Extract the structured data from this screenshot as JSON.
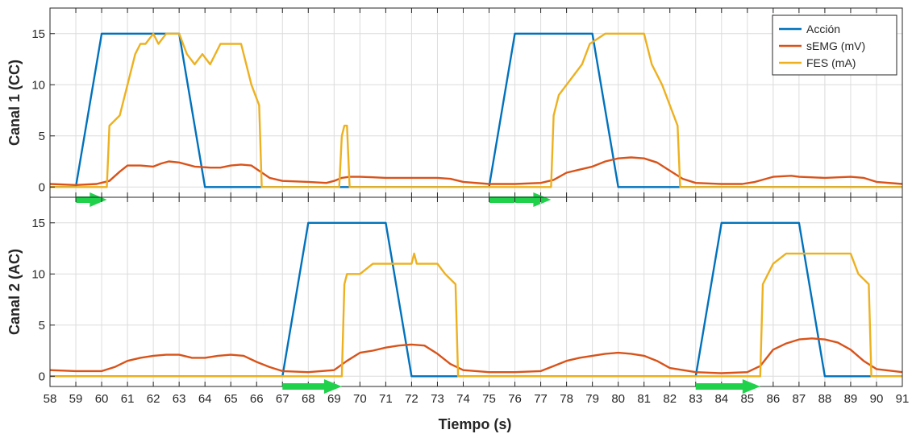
{
  "chart_data": {
    "type": "line",
    "xlabel": "Tiempo (s)",
    "xlim": [
      58,
      91
    ],
    "xticks": [
      58,
      59,
      60,
      61,
      62,
      63,
      64,
      65,
      66,
      67,
      68,
      69,
      70,
      71,
      72,
      73,
      74,
      75,
      76,
      77,
      78,
      79,
      80,
      81,
      82,
      83,
      84,
      85,
      86,
      87,
      88,
      89,
      90,
      91
    ],
    "grid": true,
    "colors": {
      "accion": "#0072BD",
      "semg": "#D95319",
      "fes": "#EDB120",
      "arrow": "#1FD14B"
    },
    "legend": {
      "placement": "top-right",
      "entries": [
        "Acción",
        "sEMG (mV)",
        "FES (mA)"
      ]
    },
    "panels": [
      {
        "ylabel": "Canal 1 (CC)",
        "ylim": [
          -1,
          17.5
        ],
        "yticks": [
          0,
          5,
          10,
          15
        ],
        "arrows": [
          [
            59,
            60.2
          ],
          [
            75,
            77.4
          ]
        ],
        "series": [
          {
            "name": "Acción",
            "x": [
              58,
              59,
              60,
              63,
              64,
              75,
              76,
              79,
              80,
              91
            ],
            "y": [
              0,
              0,
              15,
              15,
              0,
              0,
              15,
              15,
              0,
              0
            ]
          },
          {
            "name": "sEMG (mV)",
            "x": [
              58,
              59,
              59.8,
              60.3,
              60.7,
              61,
              61.5,
              62,
              62.3,
              62.6,
              63,
              63.6,
              64.2,
              64.6,
              65,
              65.4,
              65.8,
              66.5,
              67,
              68,
              68.7,
              69,
              69.3,
              69.6,
              70,
              70.5,
              71,
              72,
              73,
              73.5,
              74,
              75,
              76,
              77,
              77.5,
              78,
              78.5,
              79,
              79.5,
              80,
              80.5,
              81,
              81.5,
              82,
              82.5,
              83,
              84,
              84.8,
              85.3,
              86,
              86.7,
              87,
              88,
              89,
              89.5,
              90,
              91
            ],
            "y": [
              0.3,
              0.2,
              0.3,
              0.6,
              1.5,
              2.1,
              2.1,
              2.0,
              2.3,
              2.5,
              2.4,
              2.0,
              1.9,
              1.9,
              2.1,
              2.2,
              2.1,
              0.9,
              0.6,
              0.5,
              0.4,
              0.6,
              0.9,
              1.0,
              1.0,
              0.95,
              0.9,
              0.9,
              0.9,
              0.8,
              0.5,
              0.3,
              0.3,
              0.4,
              0.7,
              1.4,
              1.7,
              2.0,
              2.5,
              2.8,
              2.9,
              2.8,
              2.4,
              1.6,
              0.8,
              0.4,
              0.3,
              0.3,
              0.5,
              1.0,
              1.1,
              1.0,
              0.9,
              1.0,
              0.9,
              0.5,
              0.3
            ]
          },
          {
            "name": "FES (mA)",
            "x": [
              58,
              60.2,
              60.3,
              60.7,
              61,
              61.3,
              61.5,
              61.7,
              62,
              62.2,
              62.5,
              62.8,
              63,
              63.3,
              63.6,
              63.9,
              64.2,
              64.6,
              65,
              65.4,
              65.8,
              66.1,
              66.2,
              69.2,
              69.3,
              69.4,
              69.5,
              69.6,
              77.4,
              77.5,
              77.7,
              78,
              78.3,
              78.6,
              78.9,
              79.5,
              80,
              80.5,
              81,
              81.3,
              81.7,
              82,
              82.3,
              82.4,
              91
            ],
            "y": [
              0,
              0,
              6,
              7,
              10,
              13,
              14,
              14,
              15,
              14,
              15,
              15,
              15,
              13,
              12,
              13,
              12,
              14,
              14,
              14,
              10,
              8,
              0,
              0,
              5,
              6,
              6,
              0,
              0,
              7,
              9,
              10,
              11,
              12,
              14,
              15,
              15,
              15,
              15,
              12,
              10,
              8,
              6,
              0,
              0
            ]
          }
        ]
      },
      {
        "ylabel": "Canal 2 (AC)",
        "ylim": [
          -1,
          17.5
        ],
        "yticks": [
          0,
          5,
          10,
          15
        ],
        "arrows": [
          [
            67,
            69.3
          ],
          [
            83,
            85.5
          ]
        ],
        "series": [
          {
            "name": "Acción",
            "x": [
              58,
              67,
              68,
              71,
              72,
              83,
              84,
              87,
              88,
              91
            ],
            "y": [
              0,
              0,
              15,
              15,
              0,
              0,
              15,
              15,
              0,
              0
            ]
          },
          {
            "name": "sEMG (mV)",
            "x": [
              58,
              59,
              60,
              60.5,
              61,
              61.5,
              62,
              62.5,
              63,
              63.5,
              64,
              64.5,
              65,
              65.5,
              66,
              66.5,
              67,
              68,
              69,
              69.5,
              70,
              70.5,
              71,
              71.5,
              72,
              72.5,
              73,
              73.5,
              74,
              75,
              76,
              77,
              77.5,
              78,
              78.5,
              79,
              79.5,
              80,
              80.5,
              81,
              81.5,
              82,
              83,
              84,
              85,
              85.5,
              86,
              86.5,
              87,
              87.5,
              88,
              88.5,
              89,
              89.5,
              90,
              91
            ],
            "y": [
              0.6,
              0.5,
              0.5,
              0.9,
              1.5,
              1.8,
              2.0,
              2.1,
              2.1,
              1.8,
              1.8,
              2.0,
              2.1,
              2.0,
              1.4,
              0.9,
              0.5,
              0.4,
              0.6,
              1.5,
              2.3,
              2.5,
              2.8,
              3.0,
              3.1,
              3.0,
              2.2,
              1.2,
              0.6,
              0.4,
              0.4,
              0.5,
              1.0,
              1.5,
              1.8,
              2.0,
              2.2,
              2.3,
              2.2,
              2.0,
              1.5,
              0.8,
              0.4,
              0.3,
              0.4,
              1.0,
              2.6,
              3.2,
              3.6,
              3.7,
              3.6,
              3.3,
              2.6,
              1.5,
              0.7,
              0.4
            ]
          },
          {
            "name": "FES (mA)",
            "x": [
              58,
              69.3,
              69.4,
              69.5,
              70,
              70.5,
              72,
              72.1,
              72.2,
              73,
              73.3,
              73.7,
              73.8,
              85.5,
              85.6,
              85.8,
              86,
              86.5,
              89,
              89.3,
              89.7,
              89.8,
              91
            ],
            "y": [
              0,
              0,
              9,
              10,
              10,
              11,
              11,
              12,
              11,
              11,
              10,
              9,
              0,
              0,
              9,
              10,
              11,
              12,
              12,
              10,
              9,
              0,
              0
            ]
          }
        ]
      }
    ]
  }
}
